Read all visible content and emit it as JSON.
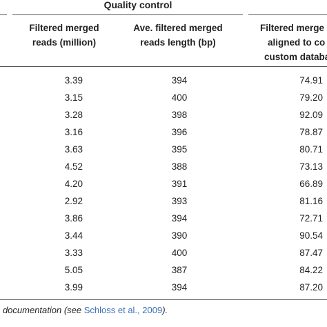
{
  "table": {
    "group_header": "Quality control",
    "columns": [
      {
        "line1": "Filtered merged",
        "line2": "reads (million)"
      },
      {
        "line1": "Ave. filtered merged",
        "line2": "reads length (bp)"
      },
      {
        "line1": "Filtered merge",
        "line2": "aligned to co",
        "line3": "custom databa"
      }
    ],
    "rows": [
      [
        "3.39",
        "394",
        "74.91"
      ],
      [
        "3.15",
        "400",
        "79.20"
      ],
      [
        "3.28",
        "398",
        "92.09"
      ],
      [
        "3.16",
        "396",
        "78.87"
      ],
      [
        "3.63",
        "395",
        "80.71"
      ],
      [
        "4.52",
        "388",
        "73.13"
      ],
      [
        "4.20",
        "391",
        "66.89"
      ],
      [
        "2.92",
        "393",
        "81.16"
      ],
      [
        "3.86",
        "394",
        "72.71"
      ],
      [
        "3.44",
        "390",
        "90.54"
      ],
      [
        "3.33",
        "400",
        "87.47"
      ],
      [
        "5.05",
        "387",
        "84.22"
      ],
      [
        "3.99",
        "394",
        "87.20"
      ]
    ]
  },
  "footnote": {
    "prefix": "- documentation (see ",
    "link": "Schloss et al., 2009",
    "suffix": ")."
  }
}
